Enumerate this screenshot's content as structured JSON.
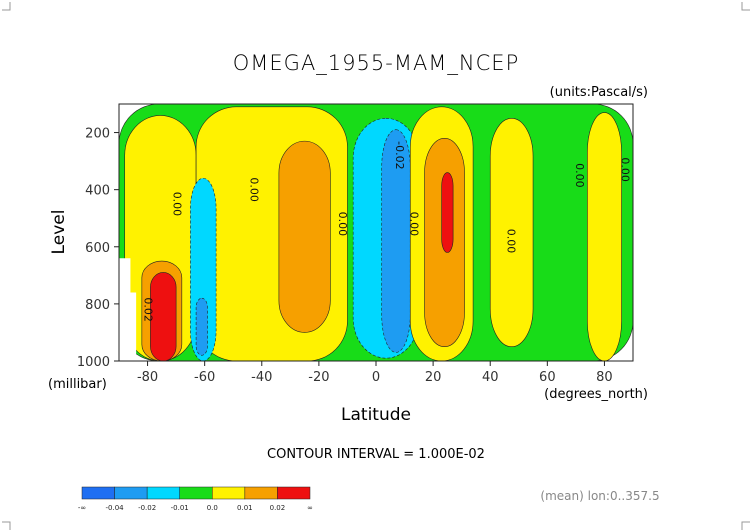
{
  "chart_data": {
    "type": "contour",
    "title": "OMEGA_1955-MAM_NCEP",
    "units_label": "(units:Pascal/s)",
    "xlabel": "Latitude",
    "ylabel": "Level",
    "x_units": "(degrees_north)",
    "y_units": "(millibar)",
    "xlim": [
      -90,
      90
    ],
    "ylim": [
      1000,
      100
    ],
    "y_reversed": true,
    "x_ticks": [
      "-80",
      "-60",
      "-40",
      "-20",
      "0",
      "20",
      "40",
      "60",
      "80"
    ],
    "x_tick_values": [
      -80,
      -60,
      -40,
      -20,
      0,
      20,
      40,
      60,
      80
    ],
    "y_ticks": [
      "200",
      "400",
      "600",
      "800",
      "1000"
    ],
    "y_tick_values": [
      200,
      400,
      600,
      800,
      1000
    ],
    "contour_interval_text": "CONTOUR INTERVAL = 1.000E-02",
    "mean_text": "(mean) lon:0..357.5",
    "contour_labels": [
      {
        "text": "0.00",
        "lon": -71,
        "lev": 450
      },
      {
        "text": "0.00",
        "lon": -44,
        "lev": 400
      },
      {
        "text": "0.00",
        "lon": -13,
        "lev": 520
      },
      {
        "text": "-0.02",
        "lon": 7,
        "lev": 280
      },
      {
        "text": "0.00",
        "lon": 12,
        "lev": 520
      },
      {
        "text": "0.00",
        "lon": 46,
        "lev": 580
      },
      {
        "text": "0.00",
        "lon": 70,
        "lev": 350
      },
      {
        "text": "0.00",
        "lon": 86,
        "lev": 330
      },
      {
        "text": "0.02",
        "lon": -81,
        "lev": 820
      }
    ],
    "colorbar": {
      "ticks": [
        "-∞",
        "-0.04",
        "-0.02",
        "-0.01",
        "0.0",
        "0.01",
        "0.02",
        "∞"
      ],
      "colors": [
        "#1f6ff2",
        "#1e9cf2",
        "#00d8ff",
        "#18dc18",
        "#fff200",
        "#f6a000",
        "#ee1010"
      ]
    },
    "regions": [
      {
        "level": "green",
        "lon": [
          -90,
          90
        ],
        "lev": [
          100,
          1000
        ]
      },
      {
        "level": "yellow",
        "lon": [
          -88,
          -63
        ],
        "lev": [
          140,
          1000
        ]
      },
      {
        "level": "yellow",
        "lon": [
          -63,
          -10
        ],
        "lev": [
          110,
          1000
        ]
      },
      {
        "level": "orange",
        "lon": [
          -34,
          -16
        ],
        "lev": [
          230,
          900
        ]
      },
      {
        "level": "cyan",
        "lon": [
          -65,
          -56
        ],
        "lev": [
          360,
          1000
        ]
      },
      {
        "level": "blue",
        "lon": [
          -63,
          -59
        ],
        "lev": [
          780,
          980
        ]
      },
      {
        "level": "orange",
        "lon": [
          -82,
          -68
        ],
        "lev": [
          650,
          1000
        ]
      },
      {
        "level": "red",
        "lon": [
          -79,
          -70
        ],
        "lev": [
          690,
          1000
        ]
      },
      {
        "level": "cyan",
        "lon": [
          -8,
          15
        ],
        "lev": [
          150,
          990
        ]
      },
      {
        "level": "blue",
        "lon": [
          2,
          12
        ],
        "lev": [
          190,
          970
        ]
      },
      {
        "level": "yellow",
        "lon": [
          12,
          34
        ],
        "lev": [
          110,
          1000
        ]
      },
      {
        "level": "orange",
        "lon": [
          17,
          31
        ],
        "lev": [
          220,
          950
        ]
      },
      {
        "level": "red",
        "lon": [
          23,
          27
        ],
        "lev": [
          340,
          620
        ]
      },
      {
        "level": "yellow",
        "lon": [
          40,
          55
        ],
        "lev": [
          150,
          950
        ]
      },
      {
        "level": "yellow",
        "lon": [
          74,
          86
        ],
        "lev": [
          130,
          1000
        ]
      }
    ]
  }
}
